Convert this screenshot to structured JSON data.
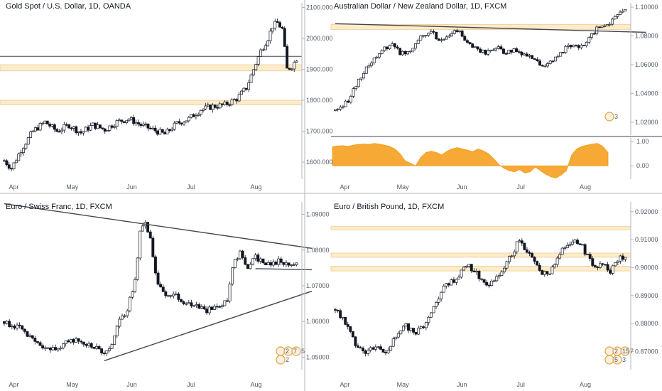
{
  "chart_data": [
    {
      "type": "candlestick",
      "title": "Gold Spot / U.S. Dollar, 1D, OANDA",
      "x_labels": [
        "Apr",
        "May",
        "Jun",
        "Jul",
        "Aug"
      ],
      "y_ticks": [
        "2100.000",
        "2000.000",
        "1900.000",
        "1800.000",
        "1700.000",
        "1600.000"
      ],
      "ylim": [
        1545,
        2115
      ],
      "path": [
        [
          0,
          1605
        ],
        [
          3,
          1580
        ],
        [
          7,
          1640
        ],
        [
          12,
          1700
        ],
        [
          17,
          1730
        ],
        [
          22,
          1700
        ],
        [
          27,
          1720
        ],
        [
          32,
          1695
        ],
        [
          37,
          1720
        ],
        [
          42,
          1705
        ],
        [
          47,
          1730
        ],
        [
          52,
          1740
        ],
        [
          57,
          1720
        ],
        [
          62,
          1705
        ],
        [
          67,
          1690
        ],
        [
          72,
          1725
        ],
        [
          77,
          1740
        ],
        [
          82,
          1770
        ],
        [
          87,
          1780
        ],
        [
          92,
          1785
        ],
        [
          97,
          1805
        ],
        [
          101,
          1840
        ],
        [
          104,
          1900
        ],
        [
          107,
          1960
        ],
        [
          110,
          2000
        ],
        [
          112,
          2040
        ],
        [
          114,
          2050
        ],
        [
          116,
          2030
        ],
        [
          118,
          1900
        ],
        [
          120,
          1910
        ],
        [
          122,
          1935
        ]
      ],
      "zones": [
        [
          1895,
          1915
        ],
        [
          1785,
          1800
        ]
      ],
      "hlines": [
        1942
      ],
      "grid": false
    },
    {
      "type": "candlestick",
      "title": "Australian Dollar / New Zealand Dollar, 1D, FXCM",
      "x_labels": [
        "Apr",
        "May",
        "Jun",
        "Jul",
        "Aug"
      ],
      "y_ticks": [
        "1.10000",
        "1.08000",
        "1.06000",
        "1.04000",
        "1.02000"
      ],
      "ylim": [
        1.011,
        1.103
      ],
      "path": [
        [
          0,
          1.028
        ],
        [
          5,
          1.035
        ],
        [
          10,
          1.052
        ],
        [
          14,
          1.062
        ],
        [
          18,
          1.07
        ],
        [
          22,
          1.075
        ],
        [
          25,
          1.068
        ],
        [
          29,
          1.07
        ],
        [
          33,
          1.08
        ],
        [
          37,
          1.083
        ],
        [
          41,
          1.076
        ],
        [
          45,
          1.082
        ],
        [
          48,
          1.083
        ],
        [
          50,
          1.076
        ],
        [
          54,
          1.072
        ],
        [
          58,
          1.068
        ],
        [
          62,
          1.072
        ],
        [
          66,
          1.068
        ],
        [
          70,
          1.07
        ],
        [
          74,
          1.066
        ],
        [
          77,
          1.063
        ],
        [
          81,
          1.058
        ],
        [
          84,
          1.063
        ],
        [
          88,
          1.07
        ],
        [
          92,
          1.075
        ],
        [
          95,
          1.072
        ],
        [
          98,
          1.078
        ],
        [
          101,
          1.085
        ],
        [
          105,
          1.088
        ],
        [
          109,
          1.094
        ],
        [
          112,
          1.097
        ]
      ],
      "zones": [
        [
          1.0845,
          1.088
        ]
      ],
      "trendlines": [
        [
          [
            0,
            1.0885
          ],
          [
            120,
            1.0825
          ]
        ]
      ],
      "annotations": [
        "3"
      ]
    },
    {
      "type": "area",
      "y_ticks": [
        "1.00",
        "0.00"
      ],
      "ylim": [
        -0.55,
        1.15
      ],
      "values": [
        0.78,
        0.82,
        0.83,
        0.8,
        0.85,
        0.88,
        0.9,
        0.88,
        0.92,
        0.9,
        0.85,
        0.8,
        0.7,
        0.5,
        0.2,
        0.1,
        0.0,
        0.35,
        0.55,
        0.6,
        0.55,
        0.45,
        0.6,
        0.7,
        0.75,
        0.7,
        0.65,
        0.58,
        0.7,
        0.62,
        0.5,
        0.3,
        0.05,
        -0.1,
        -0.2,
        -0.25,
        -0.15,
        -0.3,
        -0.25,
        -0.05,
        -0.2,
        -0.35,
        -0.45,
        -0.5,
        -0.38,
        -0.2,
        0.45,
        0.7,
        0.8,
        0.85,
        0.9,
        0.92,
        0.8,
        0.55
      ]
    },
    {
      "type": "candlestick",
      "title": "Euro / Swiss Franc, 1D, FXCM",
      "x_labels": [
        "Apr",
        "May",
        "Jun",
        "Jul",
        "Aug"
      ],
      "y_ticks": [
        "1.09000",
        "1.08000",
        "1.07000",
        "1.06000",
        "1.05000"
      ],
      "ylim": [
        1.0465,
        1.0935
      ],
      "path": [
        [
          0,
          1.06
        ],
        [
          6,
          1.058
        ],
        [
          12,
          1.054
        ],
        [
          17,
          1.052
        ],
        [
          22,
          1.053
        ],
        [
          27,
          1.055
        ],
        [
          31,
          1.054
        ],
        [
          35,
          1.053
        ],
        [
          38,
          1.051
        ],
        [
          41,
          1.052
        ],
        [
          45,
          1.06
        ],
        [
          48,
          1.063
        ],
        [
          51,
          1.072
        ],
        [
          53,
          1.085
        ],
        [
          55,
          1.088
        ],
        [
          57,
          1.083
        ],
        [
          60,
          1.07
        ],
        [
          63,
          1.068
        ],
        [
          67,
          1.067
        ],
        [
          71,
          1.065
        ],
        [
          75,
          1.065
        ],
        [
          79,
          1.063
        ],
        [
          83,
          1.064
        ],
        [
          87,
          1.066
        ],
        [
          89,
          1.075
        ],
        [
          92,
          1.08
        ],
        [
          95,
          1.075
        ],
        [
          98,
          1.078
        ],
        [
          101,
          1.077
        ],
        [
          104,
          1.076
        ],
        [
          107,
          1.077
        ],
        [
          110,
          1.076
        ],
        [
          114,
          1.076
        ]
      ],
      "trendlines": [
        [
          [
            0,
            1.093
          ],
          [
            120,
            1.0805
          ]
        ],
        [
          [
            39,
            1.049
          ],
          [
            120,
            1.0685
          ]
        ],
        [
          [
            98,
            1.0748
          ],
          [
            120,
            1.0745
          ]
        ]
      ],
      "annotations": [
        "2",
        "7",
        "5",
        "2"
      ]
    },
    {
      "type": "candlestick",
      "title": "Euro / British Pound, 1D, FXCM",
      "x_labels": [
        "Apr",
        "May",
        "Jun",
        "Jul",
        "Aug"
      ],
      "y_ticks": [
        "0.92000",
        "0.91000",
        "0.90000",
        "0.89000",
        "0.88000",
        "0.87000"
      ],
      "ylim": [
        0.8635,
        0.9235
      ],
      "path": [
        [
          0,
          0.885
        ],
        [
          4,
          0.88
        ],
        [
          8,
          0.873
        ],
        [
          12,
          0.87
        ],
        [
          16,
          0.872
        ],
        [
          20,
          0.87
        ],
        [
          24,
          0.875
        ],
        [
          28,
          0.879
        ],
        [
          32,
          0.877
        ],
        [
          36,
          0.88
        ],
        [
          40,
          0.888
        ],
        [
          44,
          0.894
        ],
        [
          48,
          0.896
        ],
        [
          52,
          0.901
        ],
        [
          56,
          0.898
        ],
        [
          60,
          0.893
        ],
        [
          64,
          0.896
        ],
        [
          67,
          0.9
        ],
        [
          70,
          0.905
        ],
        [
          73,
          0.91
        ],
        [
          76,
          0.906
        ],
        [
          79,
          0.903
        ],
        [
          82,
          0.898
        ],
        [
          85,
          0.897
        ],
        [
          88,
          0.904
        ],
        [
          91,
          0.907
        ],
        [
          94,
          0.91
        ],
        [
          97,
          0.909
        ],
        [
          100,
          0.904
        ],
        [
          103,
          0.9
        ],
        [
          106,
          0.901
        ],
        [
          109,
          0.899
        ],
        [
          112,
          0.903
        ],
        [
          115,
          0.904
        ]
      ],
      "zones": [
        [
          0.9135,
          0.9148
        ],
        [
          0.9037,
          0.9052
        ],
        [
          0.8988,
          0.9005
        ]
      ],
      "annotations": [
        "2",
        "15",
        "7",
        "5",
        "3"
      ]
    }
  ]
}
